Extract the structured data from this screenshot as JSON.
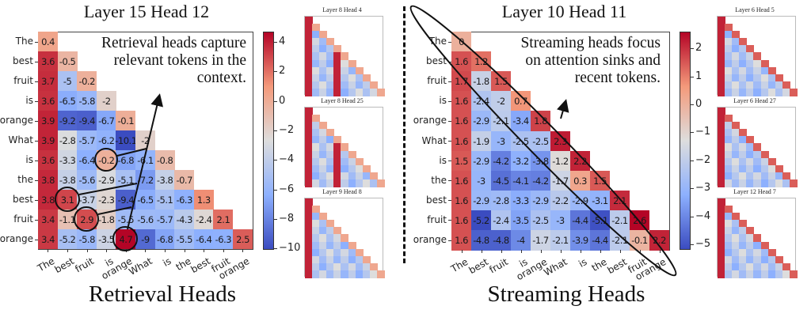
{
  "chart_data": [
    {
      "type": "heatmap",
      "title": "Layer 15 Head 12",
      "tokens": [
        "The",
        "best",
        "fruit",
        "is",
        "orange",
        "What",
        "is",
        "the",
        "best",
        "fruit",
        "orange"
      ],
      "colormap": "coolwarm",
      "vmin": -10.1,
      "vmax": 4.7,
      "colorbar_ticks": [
        4,
        2,
        0,
        -2,
        -4,
        -6,
        -8,
        -10
      ],
      "values": [
        [
          0.4
        ],
        [
          3.6,
          -0.5
        ],
        [
          3.7,
          -5.0,
          -0.2
        ],
        [
          3.6,
          -6.5,
          -5.8,
          -2.0
        ],
        [
          3.9,
          -9.2,
          -9.4,
          -6.7,
          -0.1
        ],
        [
          3.9,
          -2.8,
          -5.7,
          -6.2,
          -10.1,
          -2.0
        ],
        [
          3.6,
          -3.3,
          -6.4,
          -0.2,
          -6.8,
          -6.1,
          -0.8
        ],
        [
          3.8,
          -3.8,
          -5.6,
          -2.9,
          -5.1,
          -7.2,
          -3.8,
          -0.7
        ],
        [
          3.8,
          3.1,
          -3.7,
          -2.3,
          -9.4,
          -6.5,
          -5.1,
          -6.3,
          1.3
        ],
        [
          3.4,
          -1.1,
          2.9,
          -1.8,
          -5.5,
          -5.6,
          -5.7,
          -4.3,
          -2.4,
          2.1
        ],
        [
          3.4,
          -5.2,
          -5.8,
          -3.5,
          4.7,
          -9.0,
          -6.8,
          -5.5,
          -6.4,
          -6.3,
          2.5
        ]
      ],
      "annotation": "Retrieval heads capture relevant tokens in the context.",
      "annotation_lines": [
        "Retrieval heads capture",
        "relevant tokens in the",
        "context."
      ]
    },
    {
      "type": "heatmap",
      "title": "Layer 10 Head 11",
      "tokens": [
        "The",
        "best",
        "fruit",
        "is",
        "orange",
        "What",
        "is",
        "the",
        "best",
        "fruit",
        "orange"
      ],
      "colormap": "coolwarm",
      "vmin": -5.2,
      "vmax": 2.6,
      "colorbar_ticks": [
        2,
        1,
        0,
        -1,
        -2,
        -3,
        -4,
        -5
      ],
      "values": [
        [
          0.0
        ],
        [
          1.6,
          1.2
        ],
        [
          1.7,
          -1.8,
          1.5
        ],
        [
          1.6,
          -2.4,
          -2.0,
          0.7
        ],
        [
          1.6,
          -2.9,
          -2.1,
          -3.4,
          1.8
        ],
        [
          1.6,
          -1.9,
          -3.0,
          -2.5,
          -2.5,
          2.3
        ],
        [
          1.5,
          -2.9,
          -4.2,
          -3.2,
          -3.8,
          -1.2,
          2.2
        ],
        [
          1.6,
          -3.0,
          -4.5,
          -4.1,
          -4.2,
          -1.7,
          0.3,
          1.5
        ],
        [
          1.6,
          -2.9,
          -2.8,
          -3.3,
          -2.9,
          -2.2,
          -2.9,
          -3.1,
          2.1
        ],
        [
          1.6,
          -5.2,
          -2.4,
          -3.5,
          -2.5,
          -3.0,
          -4.4,
          -5.1,
          -2.1,
          2.6
        ],
        [
          1.6,
          -4.8,
          -4.8,
          -4.0,
          -1.7,
          -2.1,
          -3.9,
          -4.4,
          -2.1,
          -0.1,
          2.2
        ]
      ],
      "annotation": "Streaming heads focus on attention sinks and recent tokens.",
      "annotation_lines": [
        "Streaming heads focus",
        "on attention sinks and",
        "recent tokens."
      ]
    }
  ],
  "thumbnails": {
    "retrieval": [
      {
        "title": "Layer 8 Head 4"
      },
      {
        "title": "Layer 8 Head 25"
      },
      {
        "title": "Layer 9 Head 8"
      }
    ],
    "streaming": [
      {
        "title": "Layer 6 Head 5"
      },
      {
        "title": "Layer 6 Head 27"
      },
      {
        "title": "Layer 12 Head 7"
      }
    ]
  },
  "captions": {
    "left": "Retrieval Heads",
    "right": "Streaming Heads"
  },
  "colors": {
    "low": "#3b4cc0",
    "mid": "#dddddd",
    "high": "#b40426",
    "annotation": "#111111"
  }
}
